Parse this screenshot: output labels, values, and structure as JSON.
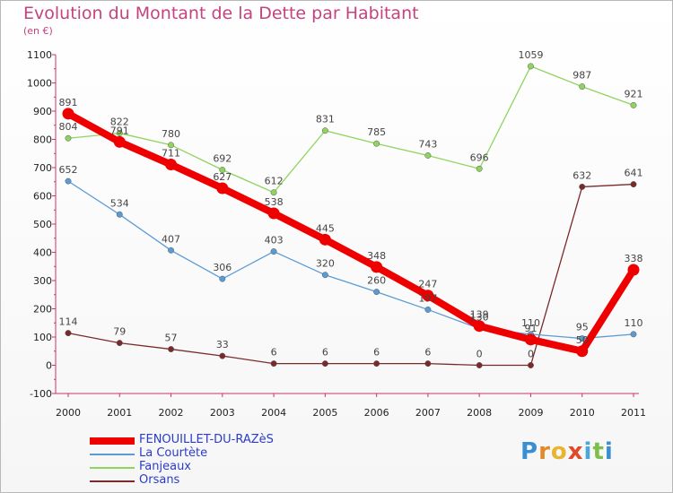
{
  "header": {
    "title": "Evolution du Montant de la Dette par Habitant",
    "subtitle": "(en €)"
  },
  "logo": {
    "letters": [
      "P",
      "r",
      "o",
      "x",
      "i",
      "t",
      "i"
    ],
    "colors": [
      "#3a8fd0",
      "#e08a2a",
      "#e8b530",
      "#e04a2a",
      "#4aa8d8",
      "#7cc04a",
      "#3a8fd0"
    ]
  },
  "chart_data": {
    "type": "line",
    "categories": [
      "2000",
      "2001",
      "2002",
      "2003",
      "2004",
      "2005",
      "2006",
      "2007",
      "2008",
      "2009",
      "2010",
      "2011"
    ],
    "ylim": [
      -100,
      1100
    ],
    "yticks": [
      -100,
      0,
      100,
      200,
      300,
      400,
      500,
      600,
      700,
      800,
      900,
      1000,
      1100
    ],
    "grid": false,
    "legend_position": "bottom-left",
    "series": [
      {
        "name": "FENOUILLET-DU-RAZèS",
        "color": "#ee0000",
        "values": [
          891,
          791,
          711,
          627,
          538,
          445,
          348,
          247,
          139,
          91,
          50,
          338
        ],
        "labels": [
          "891",
          "791",
          "711",
          "627",
          "538",
          "445",
          "348",
          "247",
          "139",
          "91",
          "50",
          "338"
        ]
      },
      {
        "name": "La Courtète",
        "color": "#5b9bd5",
        "values": [
          652,
          534,
          407,
          306,
          403,
          320,
          260,
          197,
          130,
          110,
          95,
          110
        ],
        "labels": [
          "652",
          "534",
          "407",
          "306",
          "403",
          "320",
          "260",
          "197",
          "130",
          "110",
          "95",
          "110"
        ]
      },
      {
        "name": "Fanjeaux",
        "color": "#8fd45e",
        "values": [
          804,
          822,
          780,
          692,
          612,
          831,
          785,
          743,
          696,
          1059,
          987,
          921
        ],
        "labels": [
          "804",
          "822",
          "780",
          "692",
          "612",
          "831",
          "785",
          "743",
          "696",
          "1059",
          "987",
          "921"
        ]
      },
      {
        "name": "Orsans",
        "color": "#7a2a2a",
        "values": [
          114,
          79,
          57,
          33,
          6,
          6,
          6,
          6,
          0,
          0,
          632,
          641
        ],
        "labels": [
          "114",
          "79",
          "57",
          "33",
          "6",
          "6",
          "6",
          "6",
          "0",
          "0",
          "632",
          "641"
        ]
      }
    ]
  }
}
